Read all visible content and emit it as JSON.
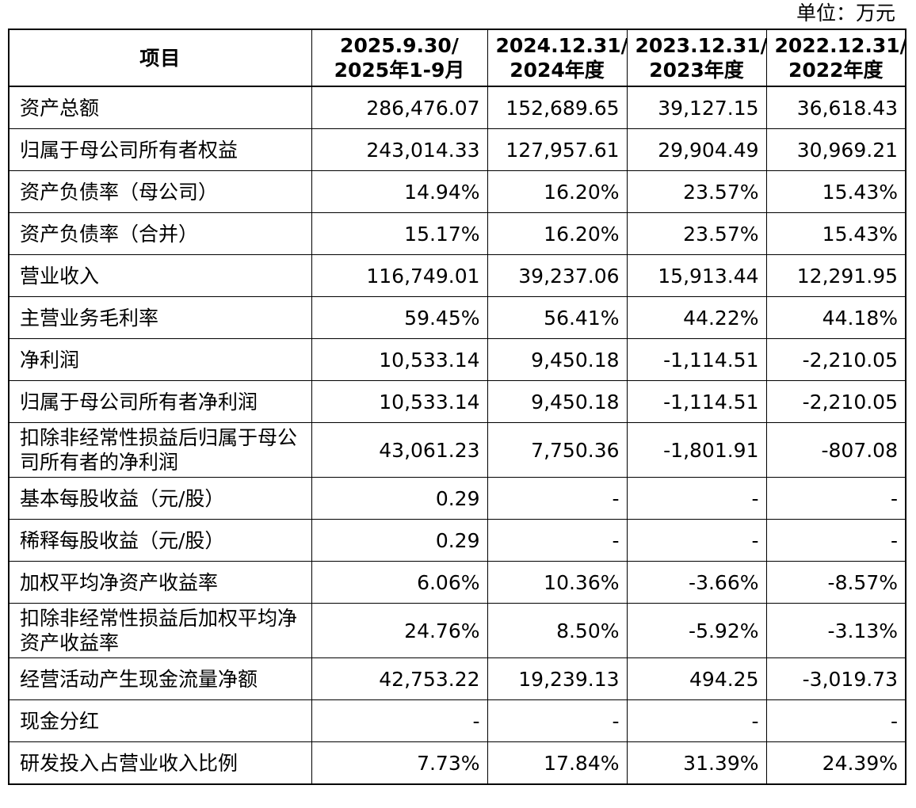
{
  "unit_label": "单位：万元",
  "columns": [
    {
      "header_line1": "项目",
      "header_line2": ""
    },
    {
      "header_line1": "2025.9.30/",
      "header_line2": "2025年1-9月"
    },
    {
      "header_line1": "2024.12.31/",
      "header_line2": "2024年度"
    },
    {
      "header_line1": "2023.12.31/",
      "header_line2": "2023年度"
    },
    {
      "header_line1": "2022.12.31/",
      "header_line2": "2022年度"
    }
  ],
  "rows": [
    {
      "label": "资产总额",
      "values": [
        "286,476.07",
        "152,689.65",
        "39,127.15",
        "36,618.43"
      ]
    },
    {
      "label": "归属于母公司所有者权益",
      "values": [
        "243,014.33",
        "127,957.61",
        "29,904.49",
        "30,969.21"
      ]
    },
    {
      "label": "资产负债率（母公司）",
      "values": [
        "14.94%",
        "16.20%",
        "23.57%",
        "15.43%"
      ]
    },
    {
      "label": "资产负债率（合并）",
      "values": [
        "15.17%",
        "16.20%",
        "23.57%",
        "15.43%"
      ]
    },
    {
      "label": "营业收入",
      "values": [
        "116,749.01",
        "39,237.06",
        "15,913.44",
        "12,291.95"
      ]
    },
    {
      "label": "主营业务毛利率",
      "values": [
        "59.45%",
        "56.41%",
        "44.22%",
        "44.18%"
      ]
    },
    {
      "label": "净利润",
      "values": [
        "10,533.14",
        "9,450.18",
        "-1,114.51",
        "-2,210.05"
      ]
    },
    {
      "label": "归属于母公司所有者净利润",
      "values": [
        "10,533.14",
        "9,450.18",
        "-1,114.51",
        "-2,210.05"
      ]
    },
    {
      "label": "扣除非经常性损益后归属于母公司所有者的净利润",
      "values": [
        "43,061.23",
        "7,750.36",
        "-1,801.91",
        "-807.08"
      ]
    },
    {
      "label": "基本每股收益（元/股）",
      "values": [
        "0.29",
        "-",
        "-",
        "-"
      ]
    },
    {
      "label": "稀释每股收益（元/股）",
      "values": [
        "0.29",
        "-",
        "-",
        "-"
      ]
    },
    {
      "label": "加权平均净资产收益率",
      "values": [
        "6.06%",
        "10.36%",
        "-3.66%",
        "-8.57%"
      ]
    },
    {
      "label": "扣除非经常性损益后加权平均净资产收益率",
      "values": [
        "24.76%",
        "8.50%",
        "-5.92%",
        "-3.13%"
      ]
    },
    {
      "label": "经营活动产生现金流量净额",
      "values": [
        "42,753.22",
        "19,239.13",
        "494.25",
        "-3,019.73"
      ]
    },
    {
      "label": "现金分红",
      "values": [
        "-",
        "-",
        "-",
        "-"
      ]
    },
    {
      "label": "研发投入占营业收入比例",
      "values": [
        "7.73%",
        "17.84%",
        "31.39%",
        "24.39%"
      ]
    }
  ]
}
